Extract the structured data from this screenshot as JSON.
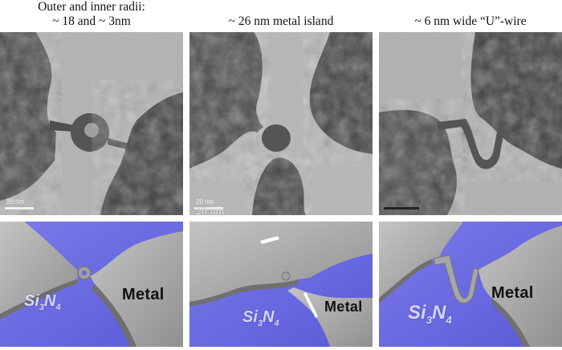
{
  "captions": {
    "left": [
      "Outer and inner radii:",
      "~ 18 and ~ 3nm"
    ],
    "middle": "~ 26 nm metal island",
    "right": "~ 6 nm wide “U”-wire"
  },
  "scale_bars": {
    "left": "20 nm",
    "middle": "20 nm",
    "middle_overlay": "20 nm"
  },
  "render_labels": {
    "metal": "Metal",
    "substrate_main": "Si",
    "substrate_sub3": "3",
    "substrate_N": "N",
    "substrate_sub4": "4"
  },
  "colors": {
    "substrate": "#6a6ae0",
    "metal": "#a6a6a6",
    "tem_background": "#b4b4b4",
    "tem_dark": "#3a3a3a"
  }
}
